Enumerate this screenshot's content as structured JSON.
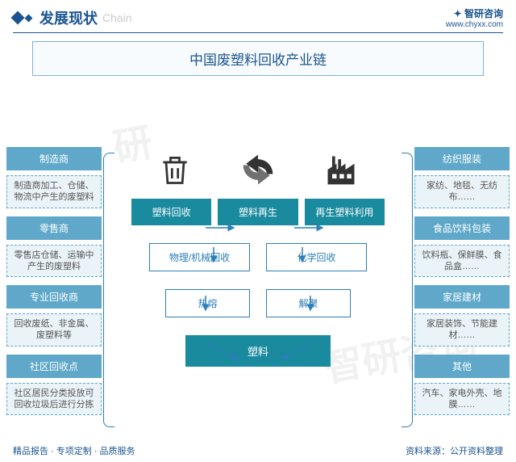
{
  "header": {
    "title_zh": "发展现状",
    "title_en": "Chain",
    "brand": "智研咨询",
    "url": "www.chyxx.com"
  },
  "main_title": "中国废塑料回收产业链",
  "left_column": [
    {
      "type": "solid",
      "text": "制造商"
    },
    {
      "type": "dashed",
      "text": "制造商加工、仓储、物流中产生的废塑料"
    },
    {
      "type": "solid",
      "text": "零售商"
    },
    {
      "type": "dashed",
      "text": "零售店仓储、运输中产生的废塑料"
    },
    {
      "type": "solid",
      "text": "专业回收商"
    },
    {
      "type": "dashed",
      "text": "回收废纸、非金属、废塑料等"
    },
    {
      "type": "solid",
      "text": "社区回收点"
    },
    {
      "type": "dashed",
      "text": "社区居民分类投放可回收垃圾后进行分拣"
    }
  ],
  "right_column": [
    {
      "type": "solid",
      "text": "纺织服装"
    },
    {
      "type": "dashed",
      "text": "家纺、地毯、无纺布……"
    },
    {
      "type": "solid",
      "text": "食品饮料包装"
    },
    {
      "type": "dashed",
      "text": "饮料瓶、保鲜膜、食品盒……"
    },
    {
      "type": "solid",
      "text": "家居建材"
    },
    {
      "type": "dashed",
      "text": "家居装饰、节能建材……"
    },
    {
      "type": "solid",
      "text": "其他"
    },
    {
      "type": "dashed",
      "text": "汽车、家电外壳、地膜……"
    }
  ],
  "center": {
    "row1": [
      "塑料回收",
      "塑料再生",
      "再生塑料利用"
    ],
    "row2": [
      "物理/机械回收",
      "化学回收"
    ],
    "row3": [
      "热熔",
      "解聚"
    ],
    "final": "塑料",
    "icons": [
      "trash-icon",
      "recycle-icon",
      "factory-icon"
    ]
  },
  "footer": {
    "left": "精品报告 · 专项定制 · 品质服务",
    "right": "资料来源：公开资料整理"
  },
  "colors": {
    "primary": "#1a5490",
    "teal": "#1a8a9e",
    "lightblue": "#5fa8c9",
    "dashborder": "#5fa8c9",
    "dashbg": "#eaf3f8",
    "bracket": "#2c7fb8"
  }
}
